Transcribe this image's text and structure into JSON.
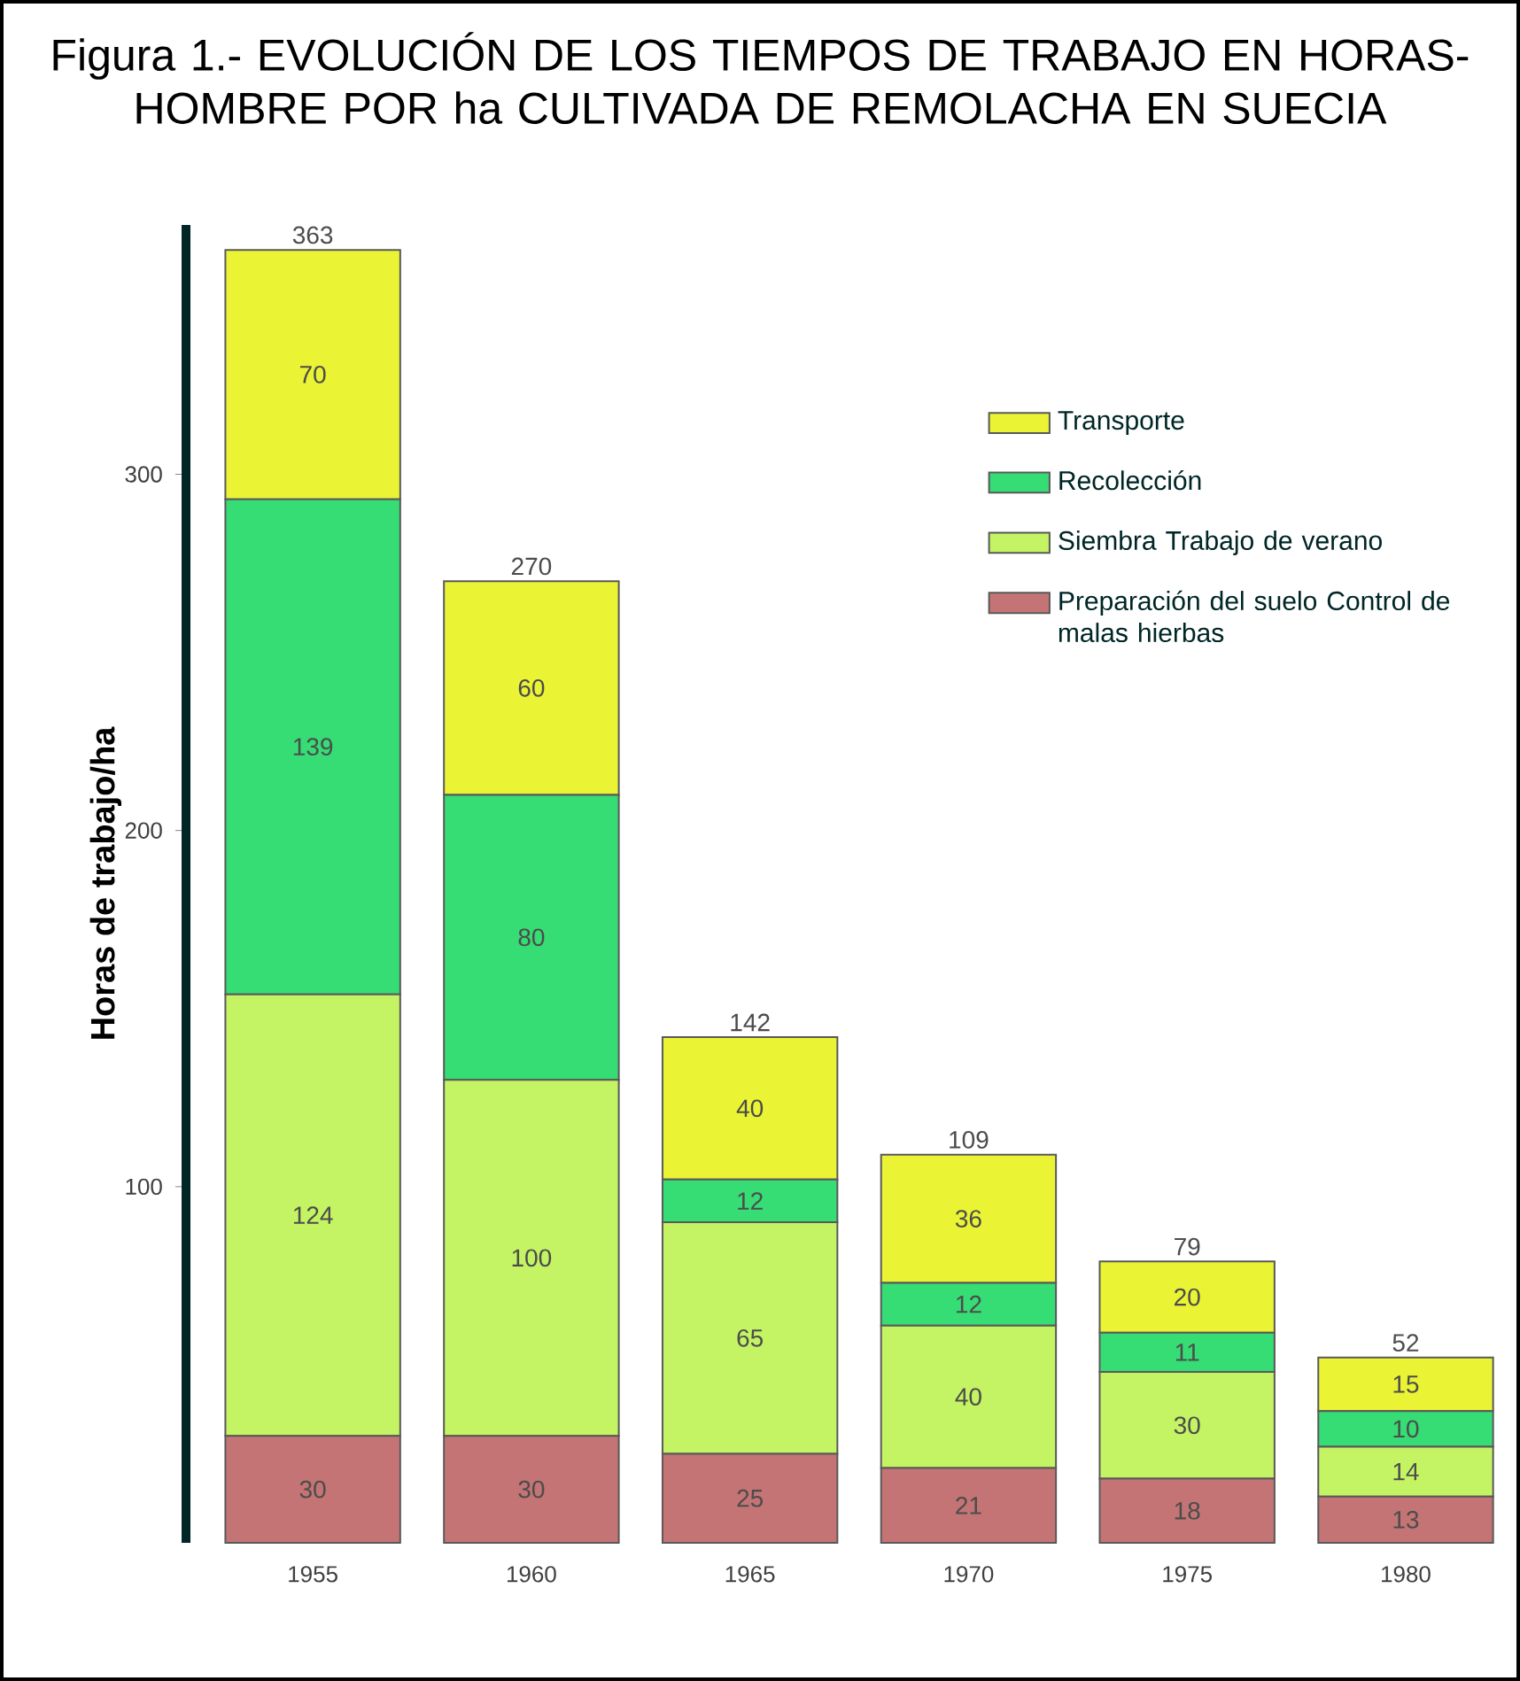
{
  "chart_data": {
    "type": "bar",
    "stacked": true,
    "title": "Figura 1.- EVOLUCIÓN DE LOS TIEMPOS DE TRABAJO EN HORAS-HOMBRE POR ha CULTIVADA DE REMOLACHA EN SUECIA",
    "ylabel": "Horas de trabajo/ha",
    "categories": [
      "1955",
      "1960",
      "1965",
      "1970",
      "1975",
      "1980"
    ],
    "series": [
      {
        "name": "Preparación del suelo Control de malas hierbas",
        "color": "#c47474",
        "values": [
          30,
          30,
          25,
          21,
          18,
          13
        ]
      },
      {
        "name": "Siembra Trabajo de verano",
        "color": "#c4f464",
        "values": [
          124,
          100,
          65,
          40,
          30,
          14
        ]
      },
      {
        "name": "Recolección",
        "color": "#36dc74",
        "values": [
          139,
          80,
          12,
          12,
          11,
          10
        ]
      },
      {
        "name": "Transporte",
        "color": "#eaf434",
        "values": [
          70,
          60,
          40,
          36,
          20,
          15
        ]
      }
    ],
    "ylim": [
      0,
      370
    ],
    "yticks": [
      100,
      200,
      300
    ],
    "data_labels": true,
    "totals": [
      "363",
      "270",
      "142",
      "109",
      "79",
      "52"
    ],
    "legend": "top right",
    "grid": false
  }
}
